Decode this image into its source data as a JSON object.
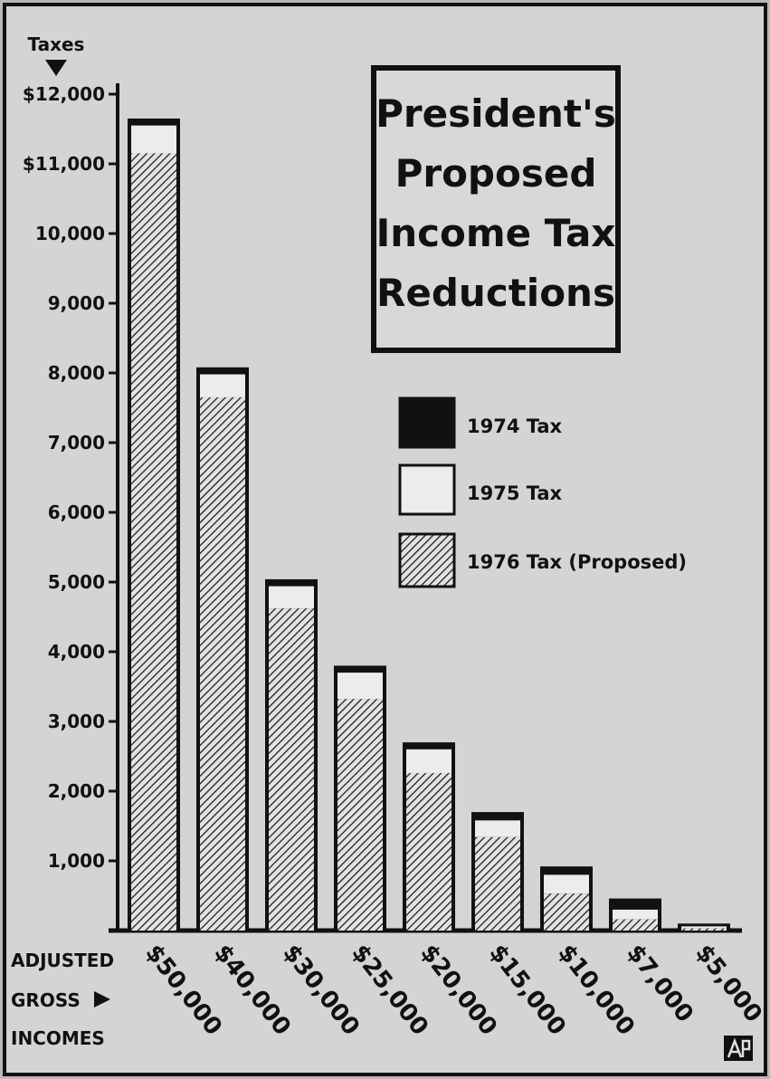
{
  "colors": {
    "background": "#d4d4d4",
    "ink": "#111111",
    "light": "#e6e6e6"
  },
  "chart_data": {
    "type": "bar",
    "stacked_overlay": true,
    "title": "President's Proposed Income Tax Reductions",
    "title_lines": [
      "President's",
      "Proposed",
      "Income Tax",
      "Reductions"
    ],
    "ylabel": "Taxes",
    "xlabel_lines": [
      "ADJUSTED",
      "GROSS",
      "INCOMES"
    ],
    "ylim": [
      0,
      12000
    ],
    "yticks": [
      {
        "value": 12000,
        "label": "$12,000"
      },
      {
        "value": 11000,
        "label": "$11,000"
      },
      {
        "value": 10000,
        "label": "10,000"
      },
      {
        "value": 9000,
        "label": "9,000"
      },
      {
        "value": 8000,
        "label": "8,000"
      },
      {
        "value": 7000,
        "label": "7,000"
      },
      {
        "value": 6000,
        "label": "6,000"
      },
      {
        "value": 5000,
        "label": "5,000"
      },
      {
        "value": 4000,
        "label": "4,000"
      },
      {
        "value": 3000,
        "label": "3,000"
      },
      {
        "value": 2000,
        "label": "2,000"
      },
      {
        "value": 1000,
        "label": "1,000"
      }
    ],
    "categories": [
      "$50,000",
      "$40,000",
      "$30,000",
      "$25,000",
      "$20,000",
      "$15,000",
      "$10,000",
      "$7,000",
      "$5,000"
    ],
    "legend_position": "right, below title",
    "grid": false,
    "series": [
      {
        "name": "1974 Tax",
        "fill": "solid",
        "values": [
          11650,
          8080,
          5040,
          3800,
          2700,
          1700,
          920,
          460,
          100
        ]
      },
      {
        "name": "1975 Tax",
        "fill": "white",
        "values": [
          11550,
          7980,
          4940,
          3700,
          2600,
          1580,
          800,
          300,
          60
        ]
      },
      {
        "name": "1976 Tax (Proposed)",
        "fill": "hatched",
        "values": [
          11150,
          7650,
          4620,
          3320,
          2260,
          1340,
          530,
          160,
          30
        ]
      }
    ]
  }
}
